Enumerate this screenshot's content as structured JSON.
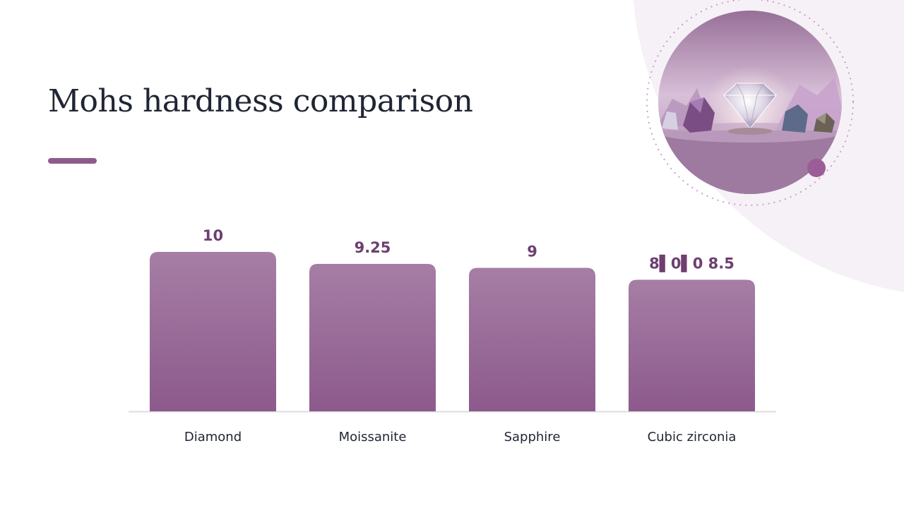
{
  "slide": {
    "title": "Mohs hardness comparison"
  },
  "hero_image": {
    "icon": "gemstones-illustration",
    "colors": {
      "ring_dots": "#c9a3c6",
      "badge": "#9a5d97"
    }
  },
  "colors": {
    "accent": "#8f5a8c",
    "bar_top": "#a67ea5",
    "bar_bottom": "#8c5a8c",
    "value_label": "#6e3f6f",
    "category_label": "#1f2533",
    "axis_line": "#dcdcdc",
    "background_blob": "#f6f1f6"
  },
  "chart_data": {
    "type": "bar",
    "title": "",
    "xlabel": "",
    "ylabel": "",
    "categories": [
      "Diamond",
      "Moissanite",
      "Sapphire",
      "Cubic zirconia"
    ],
    "values": [
      10,
      9.25,
      9,
      8.25
    ],
    "data_labels": [
      "10",
      "9.25",
      "9",
      "8▌0▌0 8.5"
    ],
    "ylim": [
      0,
      10
    ],
    "grid": false,
    "legend": "none"
  }
}
